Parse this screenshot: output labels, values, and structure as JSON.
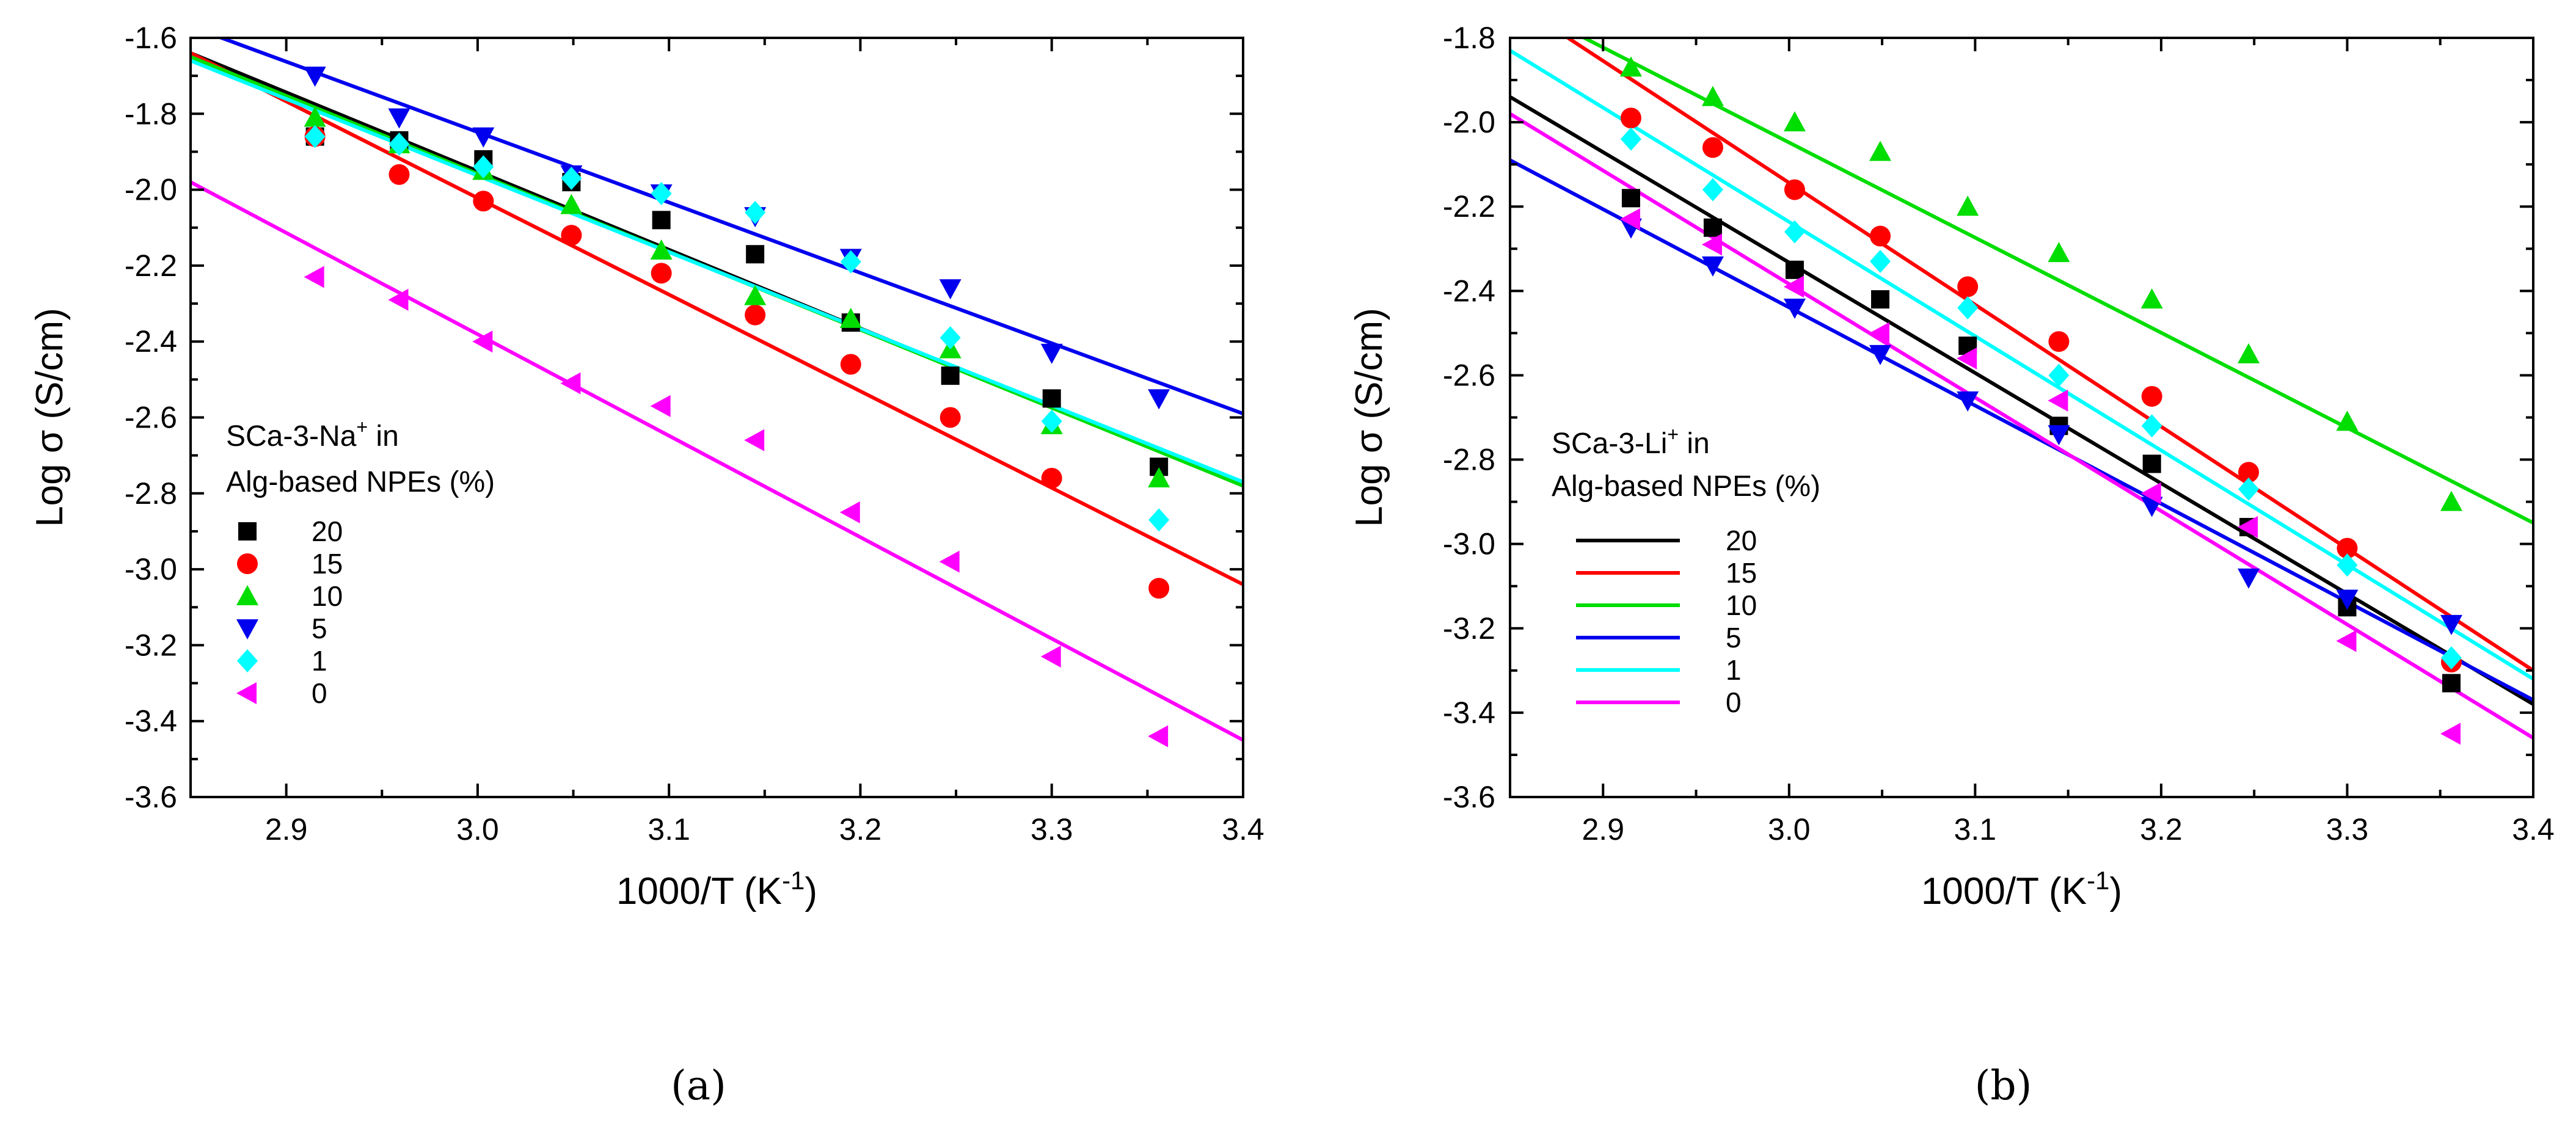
{
  "chart_data": [
    {
      "type": "scatter",
      "panel_label": "(a)",
      "panel_letter": "a",
      "xlabel": "1000/T (K",
      "xlabel_sup": "-1",
      "xlabel_end": ")",
      "ylabel": "Log σ (S/cm)",
      "xlim": [
        2.85,
        3.4
      ],
      "ylim": [
        -3.6,
        -1.6
      ],
      "xticks": [
        2.9,
        3.0,
        3.1,
        3.2,
        3.3,
        3.4
      ],
      "xtick_labels": [
        "2.9",
        "3.0",
        "3.1",
        "3.2",
        "3.3",
        "3.4"
      ],
      "yticks": [
        -3.6,
        -3.4,
        -3.2,
        -3.0,
        -2.8,
        -2.6,
        -2.4,
        -2.2,
        -2.0,
        -1.8,
        -1.6
      ],
      "ytick_labels": [
        "-3.6",
        "-3.4",
        "-3.2",
        "-3.0",
        "-2.8",
        "-2.6",
        "-2.4",
        "-2.2",
        "-2.0",
        "-1.8",
        "-1.6"
      ],
      "grid": false,
      "legend": {
        "title_line1": "SCa-3-Na",
        "title_sup": "+",
        "title_line1_end": " in",
        "title_line2": "Alg-based NPEs (%)",
        "style": "markers",
        "placement": "lower-left"
      },
      "x": [
        2.915,
        2.959,
        3.003,
        3.049,
        3.096,
        3.145,
        3.195,
        3.247,
        3.3,
        3.356
      ],
      "series": [
        {
          "name": "20",
          "color": "#000000",
          "marker": "square",
          "values": [
            -1.86,
            -1.87,
            -1.92,
            -1.98,
            -2.08,
            -2.17,
            -2.35,
            -2.49,
            -2.55,
            -2.73
          ],
          "fit": [
            [
              2.85,
              -1.64
            ],
            [
              3.4,
              -2.78
            ]
          ]
        },
        {
          "name": "15",
          "color": "#ff0000",
          "marker": "circle",
          "values": [
            -1.86,
            -1.96,
            -2.03,
            -2.12,
            -2.22,
            -2.33,
            -2.46,
            -2.6,
            -2.76,
            -3.05
          ],
          "fit": [
            [
              2.85,
              -1.64
            ],
            [
              3.4,
              -3.04
            ]
          ]
        },
        {
          "name": "10",
          "color": "#00dd00",
          "marker": "triangle-up",
          "values": [
            -1.81,
            -1.88,
            -1.95,
            -2.04,
            -2.16,
            -2.28,
            -2.34,
            -2.42,
            -2.62,
            -2.76
          ],
          "fit": [
            [
              2.85,
              -1.65
            ],
            [
              3.4,
              -2.78
            ]
          ]
        },
        {
          "name": "5",
          "color": "#0000ee",
          "marker": "triangle-down",
          "values": [
            -1.7,
            -1.81,
            -1.86,
            -1.96,
            -2.01,
            -2.07,
            -2.18,
            -2.26,
            -2.43,
            -2.55
          ],
          "fit": [
            [
              2.85,
              -1.57
            ],
            [
              3.4,
              -2.59
            ]
          ]
        },
        {
          "name": "1",
          "color": "#00ffff",
          "marker": "diamond",
          "values": [
            -1.86,
            -1.88,
            -1.94,
            -1.97,
            -2.01,
            -2.06,
            -2.19,
            -2.39,
            -2.61,
            -2.87
          ],
          "fit": [
            [
              2.85,
              -1.66
            ],
            [
              3.4,
              -2.77
            ]
          ]
        },
        {
          "name": "0",
          "color": "#ff00ff",
          "marker": "triangle-left",
          "values": [
            -2.23,
            -2.29,
            -2.4,
            -2.51,
            -2.57,
            -2.66,
            -2.85,
            -2.98,
            -3.23,
            -3.44
          ],
          "fit": [
            [
              2.85,
              -1.98
            ],
            [
              3.4,
              -3.45
            ]
          ]
        }
      ]
    },
    {
      "type": "scatter",
      "panel_label": "(b)",
      "panel_letter": "b",
      "xlabel": "1000/T (K",
      "xlabel_sup": "-1",
      "xlabel_end": ")",
      "ylabel": "Log σ (S/cm)",
      "xlim": [
        2.85,
        3.4
      ],
      "ylim": [
        -3.6,
        -1.8
      ],
      "xticks": [
        2.9,
        3.0,
        3.1,
        3.2,
        3.3,
        3.4
      ],
      "xtick_labels": [
        "2.9",
        "3.0",
        "3.1",
        "3.2",
        "3.3",
        "3.4"
      ],
      "yticks": [
        -3.6,
        -3.4,
        -3.2,
        -3.0,
        -2.8,
        -2.6,
        -2.4,
        -2.2,
        -2.0,
        -1.8
      ],
      "ytick_labels": [
        "-3.6",
        "-3.4",
        "-3.2",
        "-3.0",
        "-2.8",
        "-2.6",
        "-2.4",
        "-2.2",
        "-2.0",
        "-1.8"
      ],
      "grid": false,
      "legend": {
        "title_line1": "SCa-3-Li",
        "title_sup": "+",
        "title_line1_end": " in",
        "title_line2": "Alg-based NPEs (%)",
        "style": "lines",
        "placement": "lower-left"
      },
      "x": [
        2.915,
        2.959,
        3.003,
        3.049,
        3.096,
        3.145,
        3.195,
        3.247,
        3.3,
        3.356
      ],
      "series": [
        {
          "name": "20",
          "color": "#000000",
          "marker": "square",
          "values": [
            -2.18,
            -2.25,
            -2.35,
            -2.42,
            -2.53,
            -2.72,
            -2.81,
            -2.96,
            -3.15,
            -3.33
          ],
          "fit": [
            [
              2.85,
              -1.94
            ],
            [
              3.4,
              -3.38
            ]
          ]
        },
        {
          "name": "15",
          "color": "#ff0000",
          "marker": "circle",
          "values": [
            -1.99,
            -2.06,
            -2.16,
            -2.27,
            -2.39,
            -2.52,
            -2.65,
            -2.83,
            -3.01,
            -3.28
          ],
          "fit": [
            [
              2.85,
              -1.71
            ],
            [
              3.4,
              -3.3
            ]
          ]
        },
        {
          "name": "10",
          "color": "#00dd00",
          "marker": "triangle-up",
          "values": [
            -1.87,
            -1.94,
            -2.0,
            -2.07,
            -2.2,
            -2.31,
            -2.42,
            -2.55,
            -2.71,
            -2.9
          ],
          "fit": [
            [
              2.85,
              -1.71
            ],
            [
              3.4,
              -2.95
            ]
          ]
        },
        {
          "name": "5",
          "color": "#0000ee",
          "marker": "triangle-down",
          "values": [
            -2.25,
            -2.34,
            -2.44,
            -2.55,
            -2.66,
            -2.74,
            -2.91,
            -3.08,
            -3.13,
            -3.19
          ],
          "fit": [
            [
              2.85,
              -2.09
            ],
            [
              3.4,
              -3.37
            ]
          ]
        },
        {
          "name": "1",
          "color": "#00ffff",
          "marker": "diamond",
          "values": [
            -2.04,
            -2.16,
            -2.26,
            -2.33,
            -2.44,
            -2.6,
            -2.72,
            -2.87,
            -3.05,
            -3.27
          ],
          "fit": [
            [
              2.85,
              -1.83
            ],
            [
              3.4,
              -3.32
            ]
          ]
        },
        {
          "name": "0",
          "color": "#ff00ff",
          "marker": "triangle-left",
          "values": [
            -2.23,
            -2.29,
            -2.39,
            -2.5,
            -2.56,
            -2.66,
            -2.88,
            -2.96,
            -3.23,
            -3.45
          ],
          "fit": [
            [
              2.85,
              -1.98
            ],
            [
              3.4,
              -3.46
            ]
          ]
        }
      ]
    }
  ]
}
